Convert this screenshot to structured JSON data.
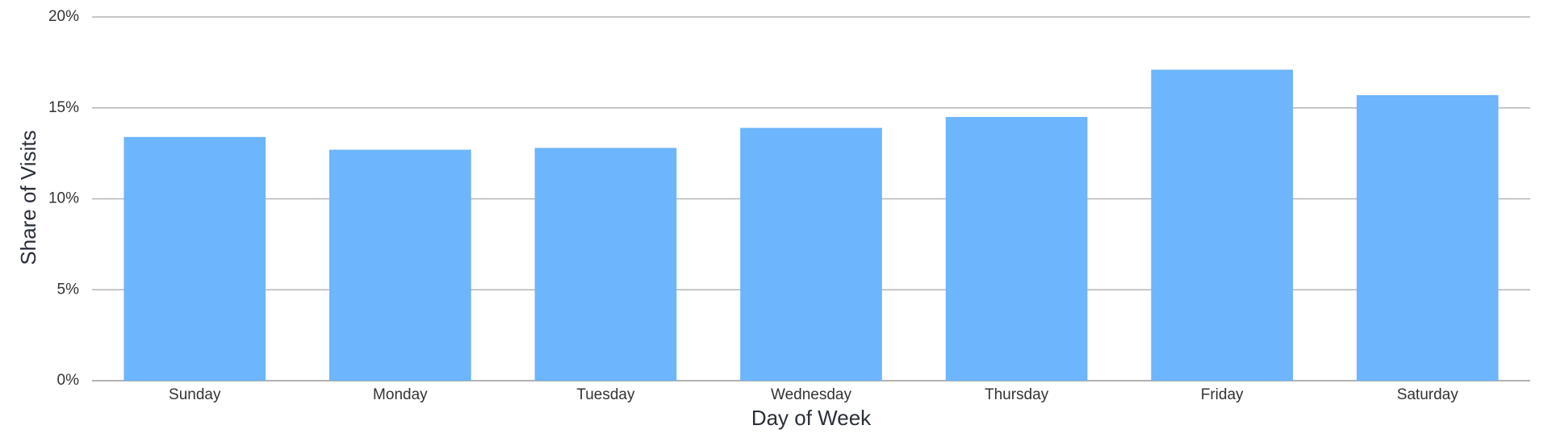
{
  "chart_data": {
    "type": "bar",
    "x_label": "Day of Week",
    "y_label": "Share of Visits",
    "categories": [
      "Sunday",
      "Monday",
      "Tuesday",
      "Wednesday",
      "Thursday",
      "Friday",
      "Saturday"
    ],
    "values": [
      13.4,
      12.7,
      12.8,
      13.9,
      14.5,
      17.1,
      15.7
    ],
    "color": "#6db5fc",
    "ylim": [
      0,
      20
    ],
    "yticks": [
      {
        "value": 0,
        "label": "0%"
      },
      {
        "value": 5,
        "label": "5%"
      },
      {
        "value": 10,
        "label": "10%"
      },
      {
        "value": 15,
        "label": "15%"
      },
      {
        "value": 20,
        "label": "20%"
      }
    ],
    "grid": true
  }
}
